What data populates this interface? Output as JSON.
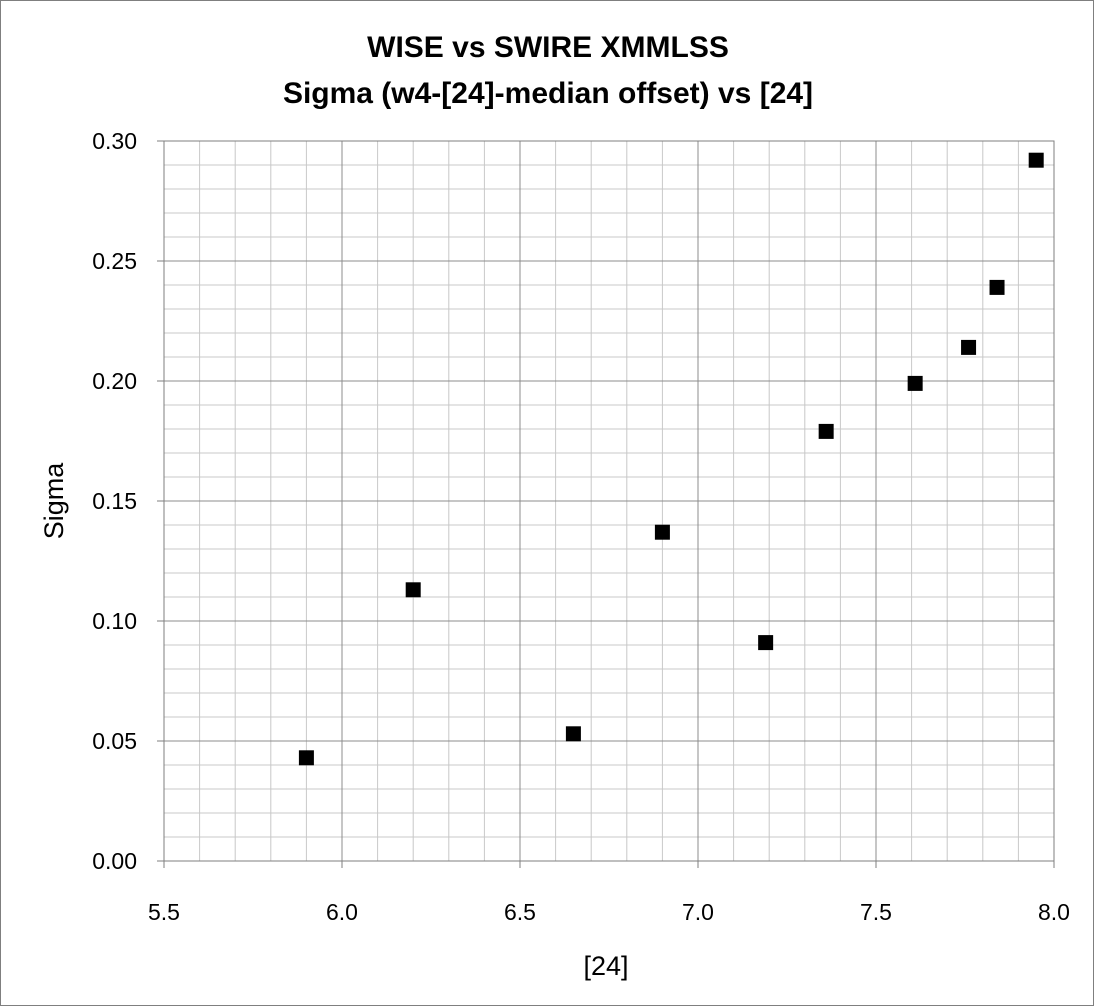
{
  "chart_data": {
    "type": "scatter",
    "title": "WISE vs SWIRE XMMLSS",
    "subtitle": "Sigma (w4-[24]-median offset) vs [24]",
    "xlabel": "[24]",
    "ylabel": "Sigma",
    "xlim": [
      5.5,
      8.0
    ],
    "ylim": [
      0.0,
      0.3
    ],
    "x_ticks": [
      "5.5",
      "6.0",
      "6.5",
      "7.0",
      "7.5",
      "8.0"
    ],
    "y_ticks": [
      "0.00",
      "0.05",
      "0.10",
      "0.15",
      "0.20",
      "0.25",
      "0.30"
    ],
    "grid": true,
    "legend": "none",
    "marker": "square",
    "marker_color": "#000000",
    "series": [
      {
        "points": [
          {
            "x": 5.9,
            "y": 0.043
          },
          {
            "x": 6.2,
            "y": 0.113
          },
          {
            "x": 6.65,
            "y": 0.053
          },
          {
            "x": 6.9,
            "y": 0.137
          },
          {
            "x": 7.19,
            "y": 0.091
          },
          {
            "x": 7.36,
            "y": 0.179
          },
          {
            "x": 7.61,
            "y": 0.199
          },
          {
            "x": 7.76,
            "y": 0.214
          },
          {
            "x": 7.84,
            "y": 0.239
          },
          {
            "x": 7.95,
            "y": 0.292
          }
        ]
      }
    ]
  }
}
